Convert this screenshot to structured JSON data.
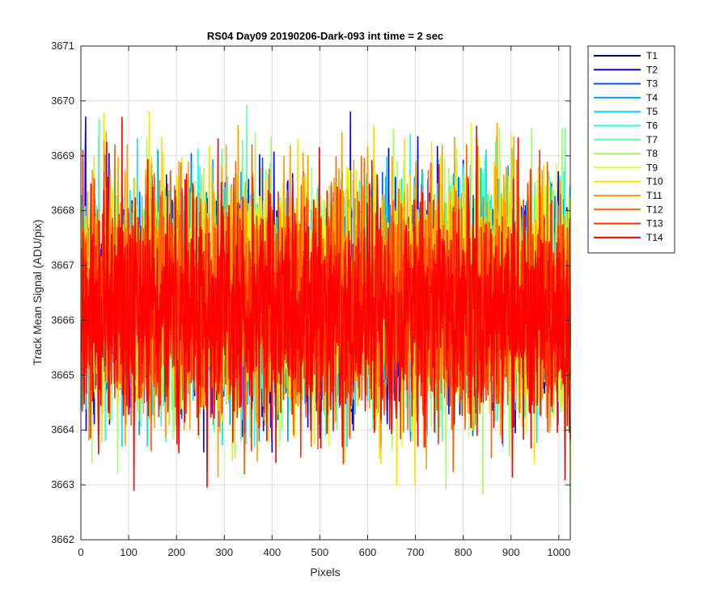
{
  "chart_data": {
    "type": "line",
    "title": "RS04 Day09 20190206-Dark-093 int time = 2 sec",
    "xlabel": "Pixels",
    "ylabel": "Track Mean Signal (ADU/pix)",
    "xlim": [
      0,
      1024
    ],
    "ylim": [
      3662,
      3671
    ],
    "xticks": [
      "0",
      "100",
      "200",
      "300",
      "400",
      "500",
      "600",
      "700",
      "800",
      "900",
      "1000"
    ],
    "yticks": [
      "3662",
      "3663",
      "3664",
      "3665",
      "3666",
      "3667",
      "3668",
      "3669",
      "3670",
      "3671"
    ],
    "grid": true,
    "legend_position": "outside-top-right",
    "pixels": 1024,
    "series": [
      {
        "name": "T1",
        "color": "#00008f",
        "baseline": 3666.4,
        "range_min": 3664.1,
        "range_max": 3669.4
      },
      {
        "name": "T2",
        "color": "#0000ff",
        "baseline": 3666.4,
        "range_min": 3663.6,
        "range_max": 3669.8
      },
      {
        "name": "T3",
        "color": "#0050ff",
        "baseline": 3666.4,
        "range_min": 3663.9,
        "range_max": 3669.5
      },
      {
        "name": "T4",
        "color": "#00a0ff",
        "baseline": 3666.4,
        "range_min": 3663.8,
        "range_max": 3669.6
      },
      {
        "name": "T5",
        "color": "#00e0ff",
        "baseline": 3666.4,
        "range_min": 3663.7,
        "range_max": 3669.6
      },
      {
        "name": "T6",
        "color": "#20ffdf",
        "baseline": 3666.4,
        "range_min": 3663.7,
        "range_max": 3669.8
      },
      {
        "name": "T7",
        "color": "#60ffa0",
        "baseline": 3666.4,
        "range_min": 3663.8,
        "range_max": 3670.1
      },
      {
        "name": "T8",
        "color": "#a0ff60",
        "baseline": 3666.4,
        "range_min": 3662.7,
        "range_max": 3669.5
      },
      {
        "name": "T9",
        "color": "#dfff20",
        "baseline": 3666.4,
        "range_min": 3663.7,
        "range_max": 3669.6
      },
      {
        "name": "T10",
        "color": "#ffe000",
        "baseline": 3666.4,
        "range_min": 3663.0,
        "range_max": 3669.8
      },
      {
        "name": "T11",
        "color": "#ffa000",
        "baseline": 3666.4,
        "range_min": 3662.7,
        "range_max": 3669.7
      },
      {
        "name": "T12",
        "color": "#ff6000",
        "baseline": 3666.3,
        "range_min": 3662.8,
        "range_max": 3669.2
      },
      {
        "name": "T13",
        "color": "#ff3000",
        "baseline": 3666.2,
        "range_min": 3663.0,
        "range_max": 3669.1
      },
      {
        "name": "T14",
        "color": "#ff0000",
        "baseline": 3666.1,
        "range_min": 3662.9,
        "range_max": 3669.7
      }
    ]
  }
}
